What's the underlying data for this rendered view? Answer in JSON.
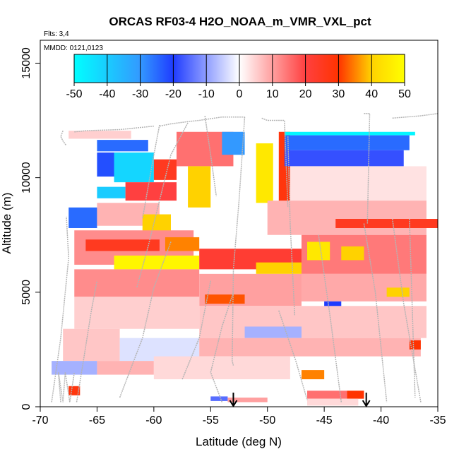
{
  "chart_data": {
    "type": "heatmap",
    "title": "ORCAS RF03-4 H2O_NOAA_m_VMR_VXL_pct",
    "annotations": {
      "flights": "Flts: 3,4",
      "dates": "MMDD: 0121,0123"
    },
    "xlabel": "Latitude (deg N)",
    "ylabel": "Altitude (m)",
    "xlim": [
      -70,
      -35
    ],
    "ylim": [
      0,
      16000
    ],
    "xticks": [
      "-70",
      "-65",
      "-60",
      "-55",
      "-50",
      "-45",
      "-40",
      "-35"
    ],
    "yticks": [
      "0",
      "5000",
      "10000",
      "15000"
    ],
    "colorbar": {
      "ticks": [
        "-50",
        "-40",
        "-30",
        "-20",
        "-10",
        "0",
        "10",
        "20",
        "30",
        "40",
        "50"
      ],
      "range": [
        -50,
        50
      ],
      "colors": [
        "#00ffff",
        "#3399ff",
        "#1f3cff",
        "#ffffff",
        "#ff4040",
        "#ff3300",
        "#ffd200",
        "#ffff00"
      ]
    },
    "cells": [
      {
        "lat0": -67.5,
        "lat1": -62.0,
        "alt0": 11700,
        "alt1": 12050,
        "value": 5
      },
      {
        "lat0": -65.0,
        "lat1": -60.5,
        "alt0": 11150,
        "alt1": 11650,
        "value": -25
      },
      {
        "lat0": -65.0,
        "lat1": -63.0,
        "alt0": 10050,
        "alt1": 11100,
        "value": -22
      },
      {
        "lat0": -63.5,
        "lat1": -60.0,
        "alt0": 9800,
        "alt1": 11100,
        "value": -42
      },
      {
        "lat0": -60.0,
        "lat1": -58.0,
        "alt0": 9900,
        "alt1": 10800,
        "value": 25
      },
      {
        "lat0": -58.0,
        "lat1": -53.0,
        "alt0": 10500,
        "alt1": 12000,
        "value": 15
      },
      {
        "lat0": -54.0,
        "lat1": -52.0,
        "alt0": 11000,
        "alt1": 12000,
        "value": -30
      },
      {
        "lat0": -65.0,
        "lat1": -62.5,
        "alt0": 9100,
        "alt1": 9600,
        "value": -40
      },
      {
        "lat0": -62.5,
        "lat1": -58.0,
        "alt0": 9000,
        "alt1": 9800,
        "value": 20
      },
      {
        "lat0": -67.5,
        "lat1": -65.0,
        "alt0": 7800,
        "alt1": 8700,
        "value": -25
      },
      {
        "lat0": -65.0,
        "lat1": -59.5,
        "alt0": 7900,
        "alt1": 8900,
        "value": 8
      },
      {
        "lat0": -61.0,
        "lat1": -58.5,
        "alt0": 7500,
        "alt1": 8400,
        "value": 40
      },
      {
        "lat0": -57.0,
        "lat1": -55.0,
        "alt0": 8700,
        "alt1": 10500,
        "value": 40
      },
      {
        "lat0": -51.0,
        "lat1": -49.5,
        "alt0": 8900,
        "alt1": 11500,
        "value": 45
      },
      {
        "lat0": -49.0,
        "lat1": -48.0,
        "alt0": 8700,
        "alt1": 12000,
        "value": 28
      },
      {
        "lat0": -48.5,
        "lat1": -37.0,
        "alt0": 11850,
        "alt1": 12000,
        "value": -48
      },
      {
        "lat0": -48.5,
        "lat1": -37.5,
        "alt0": 11200,
        "alt1": 11850,
        "value": -25
      },
      {
        "lat0": -48.5,
        "lat1": -38.0,
        "alt0": 10500,
        "alt1": 11200,
        "value": -18
      },
      {
        "lat0": -48.0,
        "lat1": -36.0,
        "alt0": 9000,
        "alt1": 10500,
        "value": 3
      },
      {
        "lat0": -50.0,
        "lat1": -36.0,
        "alt0": 7500,
        "alt1": 9000,
        "value": 8
      },
      {
        "lat0": -44.0,
        "lat1": -35.0,
        "alt0": 7800,
        "alt1": 8200,
        "value": 25
      },
      {
        "lat0": -67.0,
        "lat1": -56.5,
        "alt0": 6200,
        "alt1": 7700,
        "value": 12
      },
      {
        "lat0": -66.0,
        "lat1": -59.5,
        "alt0": 6800,
        "alt1": 7300,
        "value": 25
      },
      {
        "lat0": -59.0,
        "lat1": -56.0,
        "alt0": 6800,
        "alt1": 7400,
        "value": 35
      },
      {
        "lat0": -63.5,
        "lat1": -56.0,
        "alt0": 6000,
        "alt1": 6600,
        "value": 48
      },
      {
        "lat0": -56.0,
        "lat1": -47.0,
        "alt0": 6000,
        "alt1": 6900,
        "value": 22
      },
      {
        "lat0": -51.0,
        "lat1": -47.0,
        "alt0": 5800,
        "alt1": 6300,
        "value": 40
      },
      {
        "lat0": -47.0,
        "lat1": -36.0,
        "alt0": 5800,
        "alt1": 7500,
        "value": 14
      },
      {
        "lat0": -46.5,
        "lat1": -44.5,
        "alt0": 6400,
        "alt1": 7200,
        "value": 45
      },
      {
        "lat0": -43.5,
        "lat1": -41.5,
        "alt0": 6400,
        "alt1": 7000,
        "value": 40
      },
      {
        "lat0": -67.0,
        "lat1": -56.0,
        "alt0": 4800,
        "alt1": 6000,
        "value": 12
      },
      {
        "lat0": -56.0,
        "lat1": -47.0,
        "alt0": 4400,
        "alt1": 5800,
        "value": 10
      },
      {
        "lat0": -55.5,
        "lat1": -52.0,
        "alt0": 4500,
        "alt1": 4900,
        "value": 32
      },
      {
        "lat0": -47.0,
        "lat1": -36.0,
        "alt0": 4600,
        "alt1": 5800,
        "value": 9
      },
      {
        "lat0": -39.5,
        "lat1": -37.5,
        "alt0": 4800,
        "alt1": 5200,
        "value": 40
      },
      {
        "lat0": -45.0,
        "lat1": -43.5,
        "alt0": 4300,
        "alt1": 4600,
        "value": -20
      },
      {
        "lat0": -67.0,
        "lat1": -56.0,
        "alt0": 3400,
        "alt1": 4800,
        "value": 5
      },
      {
        "lat0": -56.0,
        "lat1": -36.0,
        "alt0": 3000,
        "alt1": 4400,
        "value": 6
      },
      {
        "lat0": -52.0,
        "lat1": -47.0,
        "alt0": 3000,
        "alt1": 3500,
        "value": -8
      },
      {
        "lat0": -68.0,
        "lat1": -63.0,
        "alt0": 2000,
        "alt1": 3400,
        "value": 6
      },
      {
        "lat0": -63.0,
        "lat1": -56.0,
        "alt0": 2000,
        "alt1": 3000,
        "value": -3
      },
      {
        "lat0": -56.0,
        "lat1": -36.5,
        "alt0": 2200,
        "alt1": 3000,
        "value": 8
      },
      {
        "lat0": -37.5,
        "lat1": -36.5,
        "alt0": 2500,
        "alt1": 2900,
        "value": 30
      },
      {
        "lat0": -69.0,
        "lat1": -65.0,
        "alt0": 1400,
        "alt1": 2000,
        "value": -8
      },
      {
        "lat0": -65.0,
        "lat1": -60.0,
        "alt0": 1400,
        "alt1": 2000,
        "value": 8
      },
      {
        "lat0": -60.0,
        "lat1": -48.0,
        "alt0": 1200,
        "alt1": 2200,
        "value": 4
      },
      {
        "lat0": -47.0,
        "lat1": -45.0,
        "alt0": 1200,
        "alt1": 1600,
        "value": 35
      },
      {
        "lat0": -67.5,
        "lat1": -66.5,
        "alt0": 500,
        "alt1": 900,
        "value": 28
      },
      {
        "lat0": -55.0,
        "lat1": -53.5,
        "alt0": 250,
        "alt1": 450,
        "value": -15
      },
      {
        "lat0": -53.5,
        "lat1": -50.0,
        "alt0": 200,
        "alt1": 400,
        "value": 10
      },
      {
        "lat0": -46.5,
        "lat1": -43.0,
        "alt0": 350,
        "alt1": 700,
        "value": 15
      },
      {
        "lat0": -43.0,
        "lat1": -41.5,
        "alt0": 350,
        "alt1": 700,
        "value": 30
      },
      {
        "lat0": -46.5,
        "lat1": -42.0,
        "alt0": 50,
        "alt1": 350,
        "value": 4
      }
    ],
    "flight_track_color": "#b4b4b4",
    "tracks": [
      {
        "lat": [
          -68.0,
          -68.2,
          -68.0,
          -67.7
        ],
        "alt": [
          12050,
          11800,
          11600,
          11400
        ]
      },
      {
        "lat": [
          -67.0,
          -66.0,
          -63.0,
          -62.0,
          -60.0
        ],
        "alt": [
          12000,
          12050,
          12100,
          12150,
          12250
        ]
      },
      {
        "lat": [
          -59.5,
          -58.5,
          -57.0,
          -56.0,
          -54.0,
          -52.0
        ],
        "alt": [
          12250,
          12350,
          12450,
          12500,
          12650,
          12650
        ]
      },
      {
        "lat": [
          -59.5,
          -60.0,
          -60.5,
          -61.0
        ],
        "alt": [
          12300,
          11000,
          9600,
          8200
        ]
      },
      {
        "lat": [
          -57.0,
          -58.5,
          -59.5,
          -60.5,
          -61.5
        ],
        "alt": [
          12400,
          11000,
          9000,
          7000,
          5200
        ]
      },
      {
        "lat": [
          -55.5,
          -55.0,
          -54.5
        ],
        "alt": [
          12700,
          11000,
          9200
        ]
      },
      {
        "lat": [
          -52.0,
          -52.5,
          -53.0,
          -53.1,
          -53.0
        ],
        "alt": [
          12650,
          9000,
          6000,
          2000,
          1800
        ]
      },
      {
        "lat": [
          -50.5,
          -50.0,
          -48.5,
          -48.2
        ],
        "alt": [
          12600,
          12500,
          12500,
          8700
        ]
      },
      {
        "lat": [
          -48.2,
          -48.0,
          -47.6
        ],
        "alt": [
          11800,
          8000,
          4000
        ]
      },
      {
        "lat": [
          -41.5,
          -41.0,
          -41.2
        ],
        "alt": [
          12800,
          12800,
          8000
        ]
      },
      {
        "lat": [
          -39.0,
          -36.5,
          -35.0
        ],
        "alt": [
          12600,
          12700,
          12800
        ]
      },
      {
        "lat": [
          -69.0,
          -68.2,
          -67.5,
          -67.7
        ],
        "alt": [
          200,
          3000,
          6500,
          8300
        ]
      },
      {
        "lat": [
          -68.2,
          -68.4,
          -68.0,
          -67.8,
          -67.4,
          -67.0
        ],
        "alt": [
          200,
          1500,
          200,
          1500,
          200,
          1500
        ]
      },
      {
        "lat": [
          -66.8,
          -66.2,
          -65.5,
          -65.0
        ],
        "alt": [
          200,
          2000,
          4200,
          5500
        ]
      },
      {
        "lat": [
          -63.0,
          -61.0,
          -60.0,
          -58.5
        ],
        "alt": [
          400,
          3000,
          5200,
          7200
        ]
      },
      {
        "lat": [
          -57.5,
          -56.0,
          -55.0
        ],
        "alt": [
          1200,
          3000,
          5500
        ]
      },
      {
        "lat": [
          -54.0,
          -55.0,
          -54.0,
          -53.0
        ],
        "alt": [
          200,
          1500,
          3500,
          5000
        ]
      },
      {
        "lat": [
          -49.0,
          -47.5,
          -46.5
        ],
        "alt": [
          4200,
          2000,
          300
        ]
      },
      {
        "lat": [
          -45.5,
          -44.5,
          -43.5
        ],
        "alt": [
          7500,
          4000,
          200
        ]
      },
      {
        "lat": [
          -41.5,
          -40.5,
          -39.5
        ],
        "alt": [
          8000,
          5000,
          200
        ]
      },
      {
        "lat": [
          -39.0,
          -38.0,
          -36.5
        ],
        "alt": [
          8200,
          4500,
          200
        ]
      },
      {
        "lat": [
          -37.5,
          -37.0
        ],
        "alt": [
          8200,
          400
        ]
      }
    ],
    "arrows_lat": [
      -53.0,
      -41.3
    ]
  }
}
